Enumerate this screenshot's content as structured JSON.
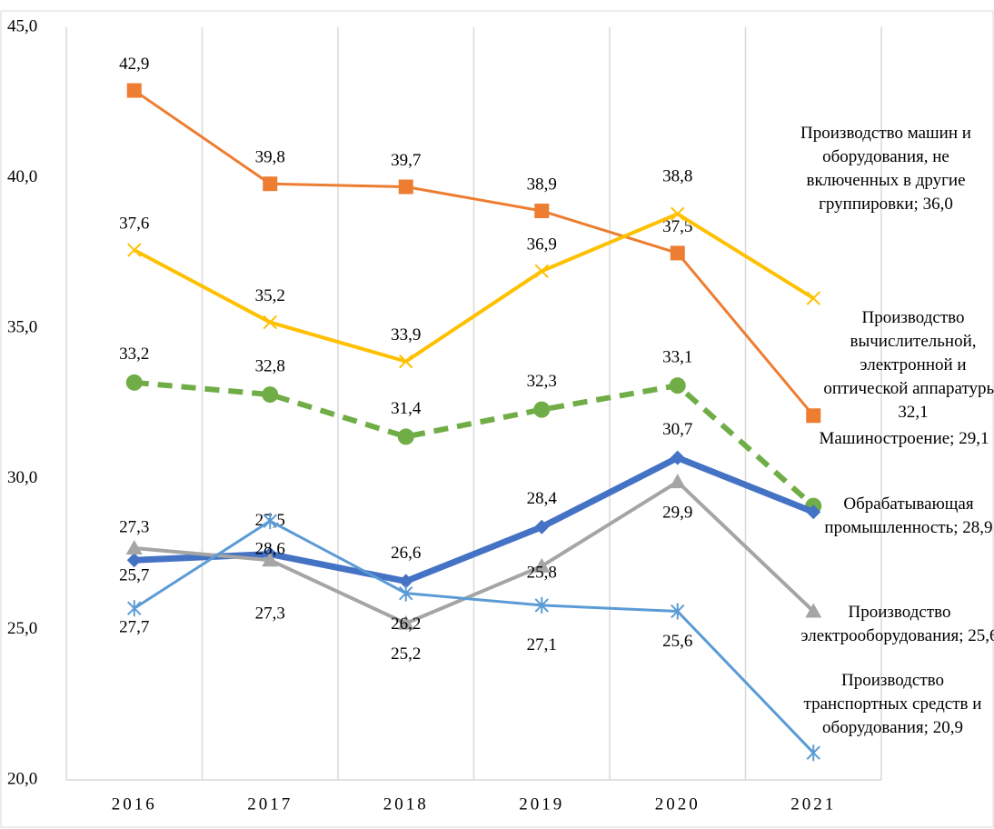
{
  "chart_data": {
    "type": "line",
    "categories": [
      "2016",
      "2017",
      "2018",
      "2019",
      "2020",
      "2021"
    ],
    "ylim": [
      20,
      45
    ],
    "yticks": [
      {
        "value": 20,
        "label": "20,0"
      },
      {
        "value": 25,
        "label": "25,0"
      },
      {
        "value": 30,
        "label": "30,0"
      },
      {
        "value": 35,
        "label": "35,0"
      },
      {
        "value": 40,
        "label": "40,0"
      },
      {
        "value": 45,
        "label": "45,0"
      }
    ],
    "grid": "x",
    "series": [
      {
        "color": "#ed7d31",
        "marker": "square",
        "values": [
          42.9,
          39.8,
          39.7,
          38.9,
          37.5,
          32.1
        ],
        "value_labels": [
          "42,9",
          "39,8",
          "39,7",
          "38,9",
          "37,5",
          "Производство вычислительной, электронной и оптической аппаратуры; 32,1"
        ]
      },
      {
        "color": "#ffc000",
        "marker": "x",
        "values": [
          37.6,
          35.2,
          33.9,
          36.9,
          38.8,
          36.0
        ],
        "value_labels": [
          "37,6",
          "35,2",
          "33,9",
          "36,9",
          "38,8",
          "Производство машин и оборудования, не включенных в другие группировки; 36,0"
        ]
      },
      {
        "color": "#70ad47",
        "marker": "circle",
        "dash": true,
        "values": [
          33.2,
          32.8,
          31.4,
          32.3,
          33.1,
          29.1
        ],
        "value_labels": [
          "33,2",
          "32,8",
          "31,4",
          "32,3",
          "33,1",
          "Машиностроение; 29,1"
        ]
      },
      {
        "color": "#4472c4",
        "marker": "diamond",
        "values": [
          27.3,
          27.5,
          26.6,
          28.4,
          30.7,
          28.9
        ],
        "value_labels": [
          "27,3",
          "27,5",
          "26,6",
          "28,4",
          "30,7",
          "Обрабатывающая промышленность; 28,9"
        ]
      },
      {
        "color": "#a5a5a5",
        "marker": "triangle",
        "values": [
          27.7,
          27.3,
          25.2,
          27.1,
          29.9,
          25.6
        ],
        "value_labels": [
          "27,7",
          "27,3",
          "25,2",
          "27,1",
          "29,9",
          "Производство электрооборудования; 25,6"
        ]
      },
      {
        "color": "#5b9bd5",
        "marker": "star",
        "values": [
          25.7,
          28.6,
          26.2,
          25.8,
          25.6,
          20.9
        ],
        "value_labels": [
          "25,7",
          "28,6",
          "26,2",
          "25,8",
          "25,6",
          "Производство транспортных средств и оборудования; 20,9"
        ]
      }
    ]
  }
}
